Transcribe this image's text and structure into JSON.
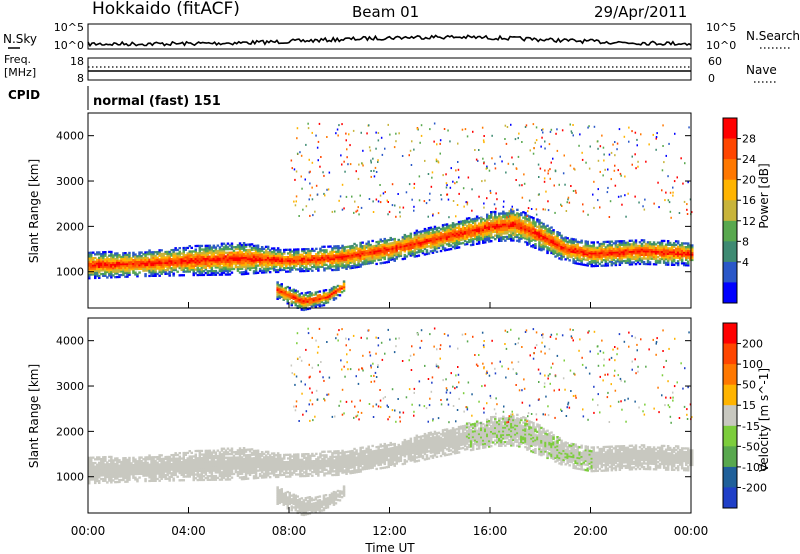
{
  "header": {
    "station": "Hokkaido (fitACF)",
    "beam": "Beam 01",
    "date": "29/Apr/2011"
  },
  "top_panels": {
    "nsky_label": "N.Sky",
    "nsky_ticks": [
      "10^5",
      "10^0"
    ],
    "nsearch_label": "N.Search",
    "nsearch_ticks": [
      "10^5",
      "10^0"
    ],
    "freq_label_1": "Freq.",
    "freq_label_2": "[MHz]",
    "freq_ticks": [
      "18",
      "8"
    ],
    "nave_label": "Nave",
    "nave_ticks": [
      "60",
      "0"
    ],
    "cpid_label": "CPID",
    "cpid_text": "normal (fast) 151"
  },
  "chart_data": [
    {
      "type": "heatmap",
      "title": "",
      "quantity": "Power",
      "xlabel": "Time UT",
      "ylabel": "Slant Range [km]",
      "x_ticks": [
        "00:00",
        "04:00",
        "08:00",
        "12:00",
        "16:00",
        "20:00",
        "00:00"
      ],
      "x_range_hours": [
        0,
        24
      ],
      "y_ticks": [
        "1000",
        "2000",
        "3000",
        "4000"
      ],
      "y_range_km": [
        200,
        4500
      ],
      "colorbar": {
        "label": "Power [dB]",
        "ticks": [
          "4",
          "8",
          "12",
          "16",
          "20",
          "24",
          "28"
        ],
        "range": [
          0,
          32
        ],
        "colors": [
          "#0000ff",
          "#2a57c8",
          "#3e8a72",
          "#58a84e",
          "#c8b43a",
          "#ffb400",
          "#ff7800",
          "#ff4600",
          "#ff0000"
        ]
      },
      "echo_bands": [
        {
          "name": "main",
          "t": [
            0,
            2,
            4,
            6,
            7,
            8,
            10,
            12,
            14,
            16,
            17,
            18,
            19,
            20,
            22,
            24
          ],
          "center_km": [
            1150,
            1180,
            1250,
            1300,
            1280,
            1250,
            1320,
            1500,
            1750,
            2000,
            2050,
            1800,
            1500,
            1400,
            1450,
            1400
          ],
          "half_width_km": [
            180,
            170,
            200,
            220,
            180,
            150,
            170,
            170,
            180,
            200,
            220,
            200,
            170,
            170,
            170,
            160
          ]
        },
        {
          "name": "low",
          "t": [
            7.5,
            8.5,
            9.5,
            10.2
          ],
          "center_km": [
            600,
            350,
            450,
            700
          ],
          "half_width_km": [
            120,
            120,
            100,
            80
          ]
        }
      ]
    },
    {
      "type": "heatmap",
      "title": "",
      "quantity": "Velocity",
      "xlabel": "Time UT",
      "ylabel": "Slant Range [km]",
      "x_ticks": [
        "00:00",
        "04:00",
        "08:00",
        "12:00",
        "16:00",
        "20:00",
        "00:00"
      ],
      "x_range_hours": [
        0,
        24
      ],
      "y_ticks": [
        "1000",
        "2000",
        "3000",
        "4000"
      ],
      "y_range_km": [
        200,
        4500
      ],
      "colorbar": {
        "label": "Velocity [m s^-1]",
        "ticks": [
          "200",
          "100",
          "50",
          "15",
          "-15",
          "-50",
          "-100",
          "-200"
        ],
        "colors": [
          "#2040c8",
          "#20609a",
          "#58a84e",
          "#7ccd3c",
          "#c8c8c0",
          "#ffb400",
          "#ff7800",
          "#ff4600",
          "#ff0000"
        ]
      },
      "ground_scatter_color": "#c8c8c0"
    }
  ]
}
